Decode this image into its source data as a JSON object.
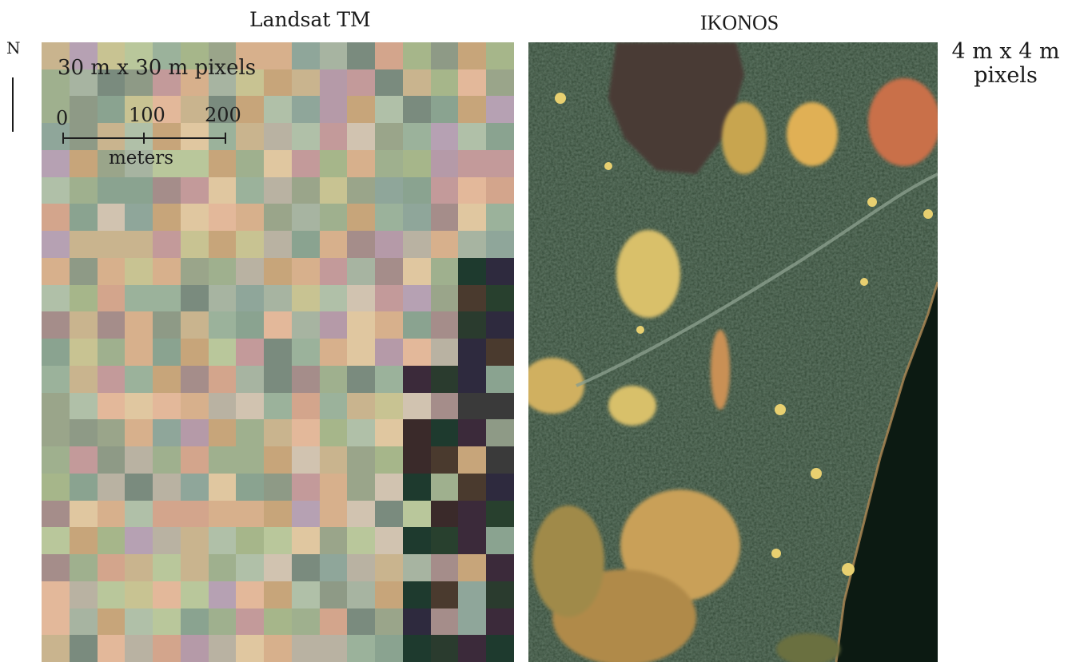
{
  "titles": {
    "left": "Landsat TM",
    "right": "IKONOS"
  },
  "north_label": "N",
  "landsat": {
    "pixel_label": "30 m x 30 m pixels",
    "scale": {
      "ticks": [
        "0",
        "100",
        "200"
      ],
      "unit": "meters"
    }
  },
  "ikonos": {
    "pixel_label_line1": "4 m x 4 m",
    "pixel_label_line2": "pixels"
  }
}
